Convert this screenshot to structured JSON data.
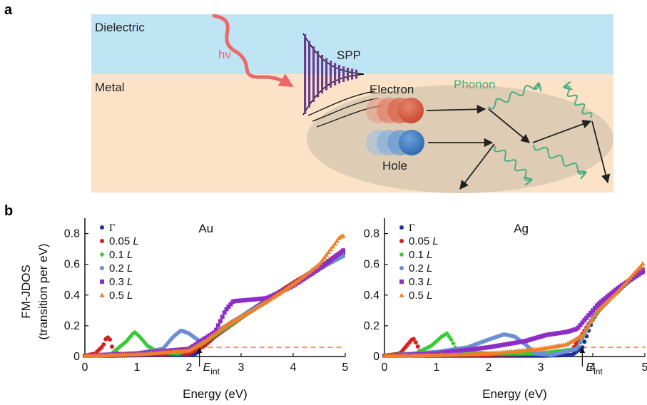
{
  "panel_a": {
    "label": "a",
    "dielectric": "Dielectric",
    "metal": "Metal",
    "photon": "hν",
    "spp": "SPP",
    "electron": "Electron",
    "hole": "Hole",
    "phonon": "Phonon",
    "colors": {
      "dielectric": "#bfe4f4",
      "metal": "#fce3c7",
      "photon": "#ea6a6a",
      "spp_bars": "#6a3d8f",
      "electron": "#d45a42",
      "hole": "#3d7cc0",
      "phonon": "#4caf82",
      "ellipse": "#d8c8b2"
    }
  },
  "panel_b": {
    "label": "b",
    "ylabel_line1": "FM-JDOS",
    "ylabel_line2": "(transition per eV)",
    "xlabel": "Energy (eV)",
    "eint_main": "E",
    "eint_sub": "int"
  },
  "chart_data": [
    {
      "type": "scatter",
      "title": "Au",
      "xlabel": "Energy (eV)",
      "ylabel": "FM-JDOS (transition per eV)",
      "xlim": [
        0,
        5
      ],
      "ylim": [
        0,
        0.9
      ],
      "xticks": [
        "0",
        "1",
        "2",
        "3",
        "4",
        "5"
      ],
      "yticks": [
        "0",
        "0.2",
        "0.4",
        "0.6",
        "0.8"
      ],
      "legend_position": "top-left",
      "threshold_line": {
        "y": 0.06,
        "color": "#f0a040",
        "style": "dashed"
      },
      "eint_arrow_x": 2.2,
      "series": [
        {
          "name": "Γ",
          "color": "#1d2f9c",
          "marker": "circle",
          "points": [
            [
              0,
              0.005
            ],
            [
              0.5,
              0.005
            ],
            [
              1,
              0.008
            ],
            [
              1.5,
              0.01
            ],
            [
              2,
              0.012
            ],
            [
              2.15,
              0.02
            ],
            [
              2.2,
              0.05
            ],
            [
              2.3,
              0.09
            ],
            [
              2.5,
              0.15
            ],
            [
              2.8,
              0.22
            ],
            [
              3,
              0.26
            ],
            [
              3.5,
              0.37
            ],
            [
              4,
              0.48
            ],
            [
              4.5,
              0.58
            ],
            [
              5,
              0.68
            ]
          ]
        },
        {
          "name": "0.05 L",
          "color": "#d62020",
          "marker": "circle",
          "points": [
            [
              0,
              0.005
            ],
            [
              0.2,
              0.02
            ],
            [
              0.35,
              0.07
            ],
            [
              0.42,
              0.13
            ],
            [
              0.48,
              0.11
            ],
            [
              0.55,
              0.03
            ],
            [
              0.7,
              0.012
            ],
            [
              1.5,
              0.015
            ],
            [
              2,
              0.02
            ],
            [
              2.3,
              0.07
            ],
            [
              2.5,
              0.13
            ],
            [
              3,
              0.25
            ],
            [
              3.5,
              0.37
            ],
            [
              4,
              0.48
            ],
            [
              4.5,
              0.58
            ],
            [
              5,
              0.7
            ]
          ]
        },
        {
          "name": "0.1 L",
          "color": "#33cc33",
          "marker": "diamond",
          "points": [
            [
              0,
              0.005
            ],
            [
              0.5,
              0.015
            ],
            [
              0.8,
              0.1
            ],
            [
              0.95,
              0.16
            ],
            [
              1.05,
              0.13
            ],
            [
              1.2,
              0.07
            ],
            [
              1.4,
              0.03
            ],
            [
              1.8,
              0.02
            ],
            [
              2.2,
              0.07
            ],
            [
              2.5,
              0.14
            ],
            [
              3,
              0.25
            ],
            [
              3.5,
              0.36
            ],
            [
              4,
              0.47
            ],
            [
              4.5,
              0.58
            ],
            [
              5,
              0.69
            ]
          ]
        },
        {
          "name": "0.2 L",
          "color": "#6d8ed6",
          "marker": "circle",
          "points": [
            [
              0,
              0.005
            ],
            [
              1,
              0.02
            ],
            [
              1.5,
              0.05
            ],
            [
              1.7,
              0.13
            ],
            [
              1.85,
              0.17
            ],
            [
              2.0,
              0.15
            ],
            [
              2.2,
              0.1
            ],
            [
              2.4,
              0.13
            ],
            [
              2.6,
              0.17
            ],
            [
              2.8,
              0.22
            ],
            [
              3,
              0.26
            ],
            [
              3.5,
              0.36
            ],
            [
              4,
              0.47
            ],
            [
              4.5,
              0.57
            ],
            [
              5,
              0.66
            ]
          ]
        },
        {
          "name": "0.3 L",
          "color": "#8e2cc8",
          "marker": "square",
          "points": [
            [
              0,
              0.005
            ],
            [
              1,
              0.02
            ],
            [
              2,
              0.05
            ],
            [
              2.5,
              0.16
            ],
            [
              2.7,
              0.3
            ],
            [
              2.85,
              0.36
            ],
            [
              3.2,
              0.37
            ],
            [
              3.5,
              0.38
            ],
            [
              4,
              0.46
            ],
            [
              4.5,
              0.57
            ],
            [
              5,
              0.7
            ]
          ]
        },
        {
          "name": "0.5 L",
          "color": "#f07f2a",
          "marker": "triangle",
          "points": [
            [
              0,
              0.005
            ],
            [
              1,
              0.015
            ],
            [
              2,
              0.04
            ],
            [
              2.3,
              0.1
            ],
            [
              2.7,
              0.2
            ],
            [
              3,
              0.26
            ],
            [
              3.5,
              0.36
            ],
            [
              4,
              0.47
            ],
            [
              4.5,
              0.6
            ],
            [
              4.9,
              0.78
            ],
            [
              5,
              0.79
            ]
          ]
        }
      ]
    },
    {
      "type": "scatter",
      "title": "Ag",
      "xlabel": "Energy (eV)",
      "ylabel": "",
      "xlim": [
        0,
        5
      ],
      "ylim": [
        0,
        0.9
      ],
      "xticks": [
        "0",
        "1",
        "2",
        "3",
        "4",
        "5"
      ],
      "yticks": [
        "0",
        "0.2",
        "0.4",
        "0.6",
        "0.8"
      ],
      "legend_position": "top-left",
      "threshold_line": {
        "y": 0.06,
        "color": "#f0a040",
        "style": "dashed"
      },
      "eint_arrow_x": 3.8,
      "series": [
        {
          "name": "Γ",
          "color": "#1d2f9c",
          "marker": "circle",
          "points": [
            [
              0,
              0.005
            ],
            [
              1,
              0.005
            ],
            [
              2,
              0.005
            ],
            [
              3,
              0.005
            ],
            [
              3.6,
              0.01
            ],
            [
              3.8,
              0.06
            ],
            [
              4,
              0.24
            ],
            [
              4.2,
              0.34
            ],
            [
              4.5,
              0.43
            ],
            [
              4.8,
              0.52
            ],
            [
              5,
              0.56
            ]
          ]
        },
        {
          "name": "0.05 L",
          "color": "#d62020",
          "marker": "circle",
          "points": [
            [
              0,
              0.005
            ],
            [
              0.3,
              0.02
            ],
            [
              0.45,
              0.08
            ],
            [
              0.55,
              0.12
            ],
            [
              0.62,
              0.08
            ],
            [
              0.7,
              0.02
            ],
            [
              1,
              0.01
            ],
            [
              2,
              0.01
            ],
            [
              3,
              0.02
            ],
            [
              3.6,
              0.04
            ],
            [
              3.9,
              0.2
            ],
            [
              4.2,
              0.35
            ],
            [
              4.6,
              0.47
            ],
            [
              5,
              0.58
            ]
          ]
        },
        {
          "name": "0.1 L",
          "color": "#33cc33",
          "marker": "diamond",
          "points": [
            [
              0,
              0.005
            ],
            [
              0.6,
              0.02
            ],
            [
              0.9,
              0.07
            ],
            [
              1.1,
              0.13
            ],
            [
              1.2,
              0.15
            ],
            [
              1.3,
              0.1
            ],
            [
              1.4,
              0.03
            ],
            [
              2,
              0.02
            ],
            [
              3,
              0.02
            ],
            [
              3.7,
              0.05
            ],
            [
              4,
              0.25
            ],
            [
              4.5,
              0.44
            ],
            [
              5,
              0.56
            ]
          ]
        },
        {
          "name": "0.2 L",
          "color": "#6d8ed6",
          "marker": "circle",
          "points": [
            [
              0,
              0.005
            ],
            [
              1,
              0.03
            ],
            [
              1.6,
              0.06
            ],
            [
              2,
              0.11
            ],
            [
              2.3,
              0.145
            ],
            [
              2.5,
              0.13
            ],
            [
              2.7,
              0.08
            ],
            [
              2.9,
              0.02
            ],
            [
              3.2,
              0.01
            ],
            [
              3.7,
              0.05
            ],
            [
              4,
              0.26
            ],
            [
              4.5,
              0.44
            ],
            [
              5,
              0.57
            ]
          ]
        },
        {
          "name": "0.3 L",
          "color": "#8e2cc8",
          "marker": "square",
          "points": [
            [
              0,
              0.005
            ],
            [
              1,
              0.02
            ],
            [
              2,
              0.06
            ],
            [
              2.7,
              0.1
            ],
            [
              3.1,
              0.14
            ],
            [
              3.5,
              0.16
            ],
            [
              3.7,
              0.18
            ],
            [
              3.9,
              0.26
            ],
            [
              4.1,
              0.34
            ],
            [
              4.5,
              0.45
            ],
            [
              5,
              0.56
            ]
          ]
        },
        {
          "name": "0.5 L",
          "color": "#f07f2a",
          "marker": "triangle",
          "points": [
            [
              0,
              0.005
            ],
            [
              1,
              0.01
            ],
            [
              2,
              0.02
            ],
            [
              3,
              0.05
            ],
            [
              3.5,
              0.08
            ],
            [
              3.8,
              0.14
            ],
            [
              4.1,
              0.3
            ],
            [
              4.5,
              0.43
            ],
            [
              5,
              0.62
            ]
          ]
        }
      ]
    }
  ]
}
